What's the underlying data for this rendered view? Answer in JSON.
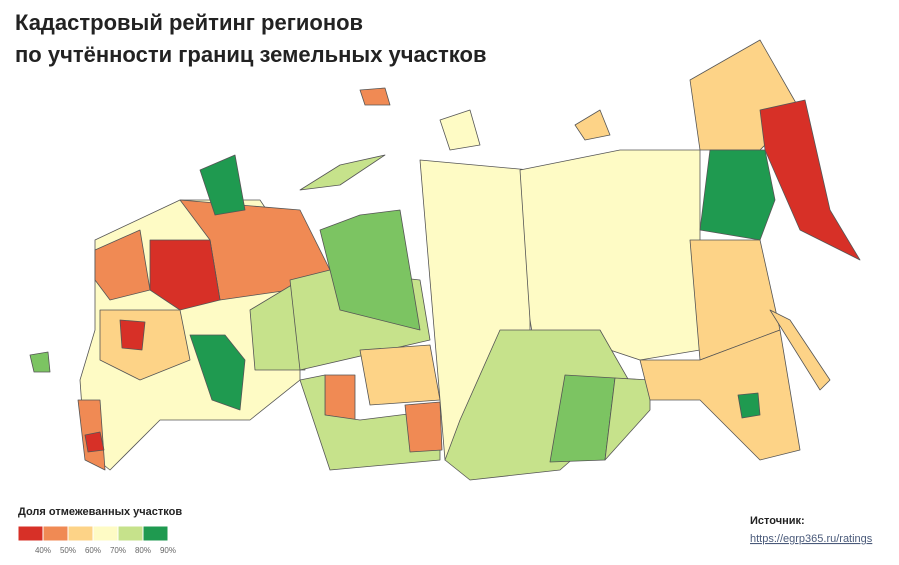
{
  "header": {
    "title": [
      "Кадастровый рейтинг регионов",
      "по учтённости границ земельных участков"
    ]
  },
  "legend": {
    "title": "Доля отмежеванных участков",
    "colors": [
      "#d73027",
      "#f08a54",
      "#fdd387",
      "#fefbc5",
      "#c6e28b",
      "#1f9a50"
    ],
    "labels": [
      "40%",
      "50%",
      "60%",
      "70%",
      "80%",
      "90%"
    ]
  },
  "source": {
    "label": "Источник:",
    "link": "https://egrp365.ru/ratings"
  }
}
